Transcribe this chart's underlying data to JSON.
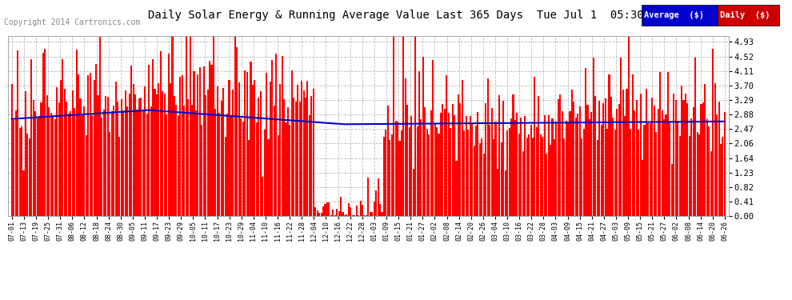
{
  "title": "Daily Solar Energy & Running Average Value Last 365 Days  Tue Jul 1  05:30",
  "copyright": "Copyright 2014 Cartronics.com",
  "yticks": [
    0.0,
    0.41,
    0.82,
    1.23,
    1.64,
    2.06,
    2.47,
    2.88,
    3.29,
    3.7,
    4.11,
    4.52,
    4.93
  ],
  "ymax": 5.1,
  "bar_color": "#FF0000",
  "avg_color": "#0000CC",
  "bg_color": "#FFFFFF",
  "plot_bg": "#FFFFFF",
  "title_bg": "#CCCCCC",
  "grid_color": "#BBBBBB",
  "legend_avg_bg": "#0000CC",
  "legend_daily_bg": "#CC0000",
  "n_bars": 365,
  "xtick_labels": [
    "07-01",
    "07-13",
    "07-19",
    "07-25",
    "07-31",
    "08-06",
    "08-12",
    "08-18",
    "08-24",
    "08-30",
    "09-05",
    "09-11",
    "09-17",
    "09-23",
    "09-29",
    "10-05",
    "10-11",
    "10-17",
    "10-23",
    "10-29",
    "11-04",
    "11-10",
    "11-16",
    "11-22",
    "11-28",
    "12-04",
    "12-10",
    "12-16",
    "12-22",
    "12-28",
    "01-03",
    "01-09",
    "01-15",
    "01-21",
    "01-27",
    "02-02",
    "02-08",
    "02-14",
    "02-20",
    "02-26",
    "03-04",
    "03-10",
    "03-16",
    "03-22",
    "03-28",
    "04-03",
    "04-09",
    "04-15",
    "04-21",
    "04-27",
    "05-03",
    "05-09",
    "05-15",
    "05-21",
    "05-27",
    "06-02",
    "06-08",
    "06-14",
    "06-20",
    "06-26"
  ]
}
